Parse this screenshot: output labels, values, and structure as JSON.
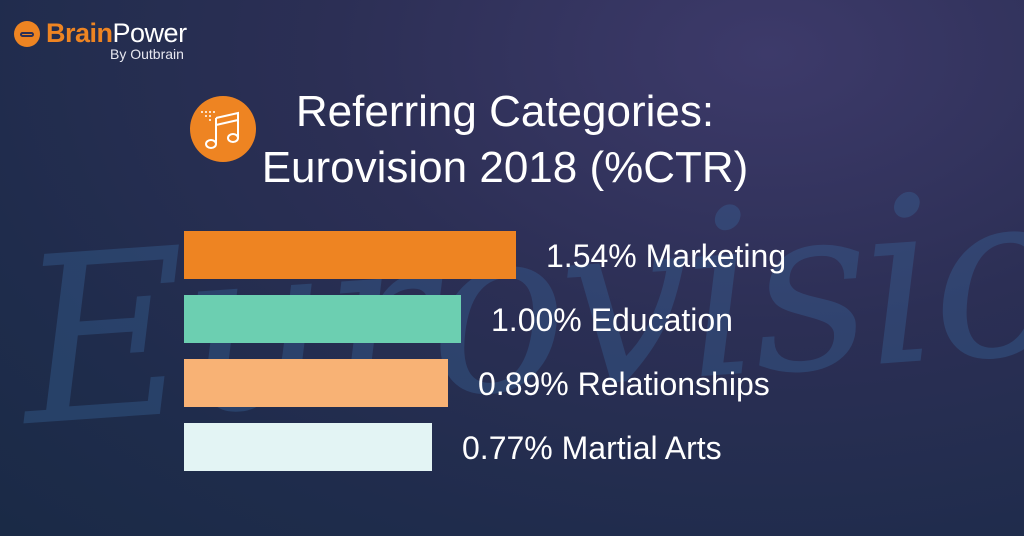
{
  "brand": {
    "name_part1": "Brain",
    "name_part2": "Power",
    "byline": "By Outbrain",
    "background_watermark": "Eurovision",
    "accent": "#ee8422"
  },
  "title_icon": "music-note-icon",
  "chart_data": {
    "type": "bar",
    "orientation": "horizontal",
    "title_line1": "Referring Categories:",
    "title_line2": "Eurovision 2018 (%CTR)",
    "categories": [
      "Marketing",
      "Education",
      "Relationships",
      "Martial Arts"
    ],
    "values": [
      1.54,
      1.0,
      0.89,
      0.77
    ],
    "data_labels": [
      "1.54% Marketing",
      "1.00% Education",
      "0.89% Relationships",
      "0.77% Martial Arts"
    ],
    "colors": [
      "#ee8422",
      "#6ccfb1",
      "#f8b275",
      "#e3f4f4"
    ],
    "grid": false,
    "legend": "none"
  }
}
